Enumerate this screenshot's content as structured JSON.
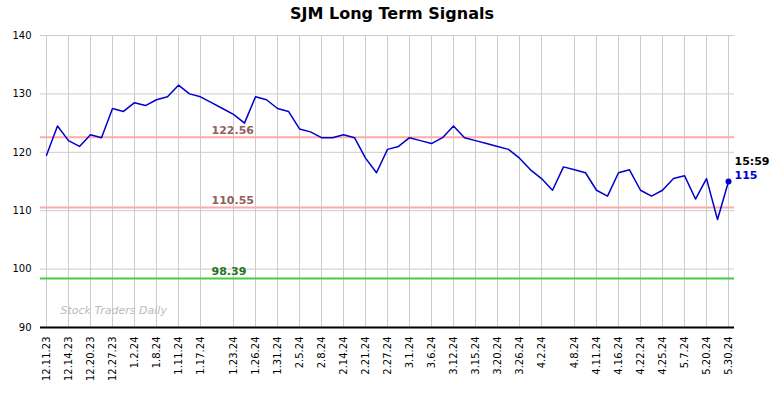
{
  "chart_data": {
    "type": "line",
    "title": "SJM Long Term Signals",
    "categories": [
      "12.11.23",
      null,
      "12.14.23",
      null,
      "12.20.23",
      null,
      "12.27.23",
      null,
      "1.2.24",
      null,
      "1.8.24",
      null,
      "1.11.24",
      null,
      "1.17.24",
      null,
      null,
      "1.23.24",
      null,
      "1.26.24",
      null,
      "1.31.24",
      null,
      "2.5.24",
      null,
      "2.8.24",
      null,
      "2.14.24",
      null,
      "2.21.24",
      null,
      "2.27.24",
      null,
      "3.1.24",
      null,
      "3.6.24",
      null,
      "3.12.24",
      null,
      "3.15.24",
      null,
      "3.20.24",
      null,
      "3.26.24",
      null,
      "4.2.24",
      null,
      null,
      "4.8.24",
      null,
      "4.11.24",
      null,
      "4.16.24",
      null,
      "4.22.24",
      null,
      "4.25.24",
      null,
      "5.7.24",
      null,
      "5.20.24",
      null,
      "5.30.24"
    ],
    "values": [
      119.5,
      124.5,
      122.0,
      121.0,
      123.0,
      122.5,
      127.5,
      127.0,
      128.5,
      128.0,
      129.0,
      129.5,
      131.5,
      130.0,
      129.5,
      128.5,
      127.5,
      126.5,
      125.0,
      129.5,
      129.0,
      127.5,
      127.0,
      124.0,
      123.5,
      122.5,
      122.5,
      123.0,
      122.5,
      119.0,
      116.5,
      120.5,
      121.0,
      122.5,
      122.0,
      121.5,
      122.5,
      124.5,
      122.5,
      122.0,
      121.5,
      121.0,
      120.5,
      119.0,
      117.0,
      115.5,
      113.5,
      117.5,
      117.0,
      116.5,
      113.5,
      112.5,
      116.5,
      117.0,
      113.5,
      112.5,
      113.5,
      115.5,
      116.0,
      112.0,
      115.5,
      108.5,
      115.0
    ],
    "color": "#0000cc",
    "ylim": [
      90,
      140
    ],
    "yticks": [
      90,
      100,
      110,
      120,
      130,
      140
    ],
    "grid": true,
    "reference_lines": [
      {
        "value": 122.56,
        "label": "122.56",
        "color": "#ffaaaa"
      },
      {
        "value": 110.55,
        "label": "110.55",
        "color": "#ffaaaa"
      },
      {
        "value": 98.39,
        "label": "98.39",
        "color": "#44cc44"
      }
    ],
    "annotations": [
      {
        "text": "15:59",
        "color": "#000000"
      },
      {
        "text": "115",
        "color": "#0000cc"
      }
    ],
    "watermark": {
      "text": "Stock Traders Daily",
      "color": "#bbbbbb"
    }
  }
}
